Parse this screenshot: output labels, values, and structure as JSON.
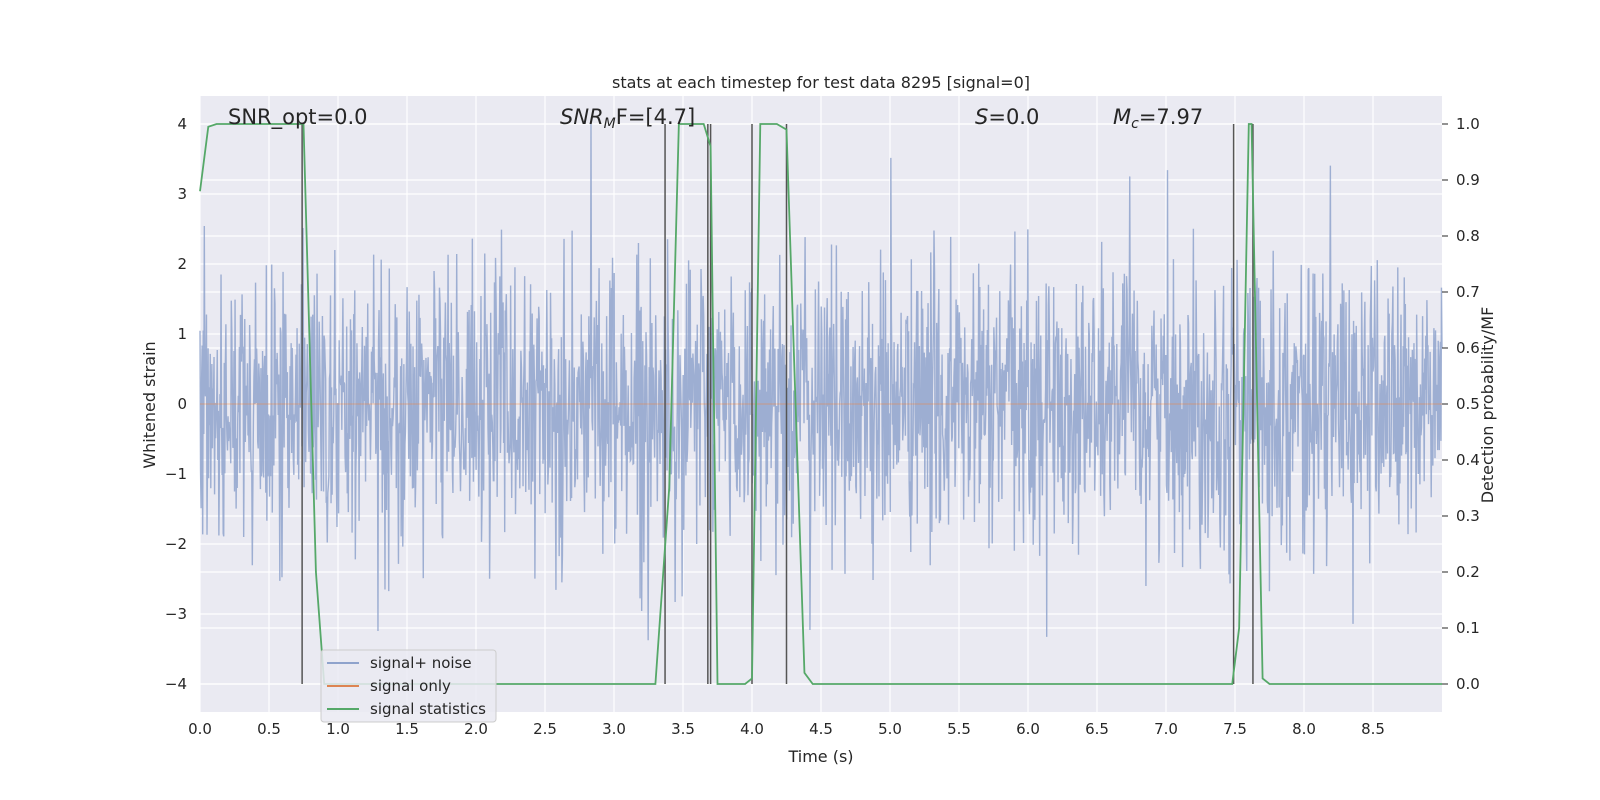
{
  "chart_data": {
    "type": "line",
    "title": "stats at each timestep for test data 8295 [signal=0]",
    "xlabel": "Time (s)",
    "ylabel_left": "Whitened strain",
    "ylabel_right": "Detection probability/MF",
    "xlim": [
      0,
      9
    ],
    "ylim_left": [
      -4.4,
      4.4
    ],
    "ylim_right": [
      -0.05,
      1.05
    ],
    "x_ticks": [
      0.0,
      0.5,
      1.0,
      1.5,
      2.0,
      2.5,
      3.0,
      3.5,
      4.0,
      4.5,
      5.0,
      5.5,
      6.0,
      6.5,
      7.0,
      7.5,
      8.0,
      8.5
    ],
    "x_tick_labels": [
      "0.0",
      "0.5",
      "1.0",
      "1.5",
      "2.0",
      "2.5",
      "3.0",
      "3.5",
      "4.0",
      "4.5",
      "5.0",
      "5.5",
      "6.0",
      "6.5",
      "7.0",
      "7.5",
      "8.0",
      "8.5"
    ],
    "y_left_ticks": [
      -4,
      -3,
      -2,
      -1,
      0,
      1,
      2,
      3,
      4
    ],
    "y_left_tick_labels": [
      "−4",
      "−3",
      "−2",
      "−1",
      "0",
      "1",
      "2",
      "3",
      "4"
    ],
    "y_right_ticks": [
      0.0,
      0.1,
      0.2,
      0.3,
      0.4,
      0.5,
      0.6,
      0.7,
      0.8,
      0.9,
      1.0
    ],
    "y_right_tick_labels": [
      "0.0",
      "0.1",
      "0.2",
      "0.3",
      "0.4",
      "0.5",
      "0.6",
      "0.7",
      "0.8",
      "0.9",
      "1.0"
    ],
    "grid": true,
    "legend": {
      "placement": "lower-left",
      "entries": [
        {
          "label": "signal+ noise",
          "color": "#8fa3cc"
        },
        {
          "label": "signal only",
          "color": "#dd8452"
        },
        {
          "label": "signal statistics",
          "color": "#55a868"
        }
      ]
    },
    "annotations": {
      "snr_opt": "SNR_opt=0.0",
      "snr_mf_base": "SNR",
      "snr_mf_sub": "M",
      "snr_mf_rest": "F=[4.7]",
      "s_base": "S",
      "s_rest": "=0.0",
      "mc_base": "M",
      "mc_sub": "c",
      "mc_rest": "=7.97"
    },
    "series": [
      {
        "name": "signal+ noise",
        "axis": "left",
        "color": "#8fa3cc",
        "kind": "noise",
        "n_samples": 2304,
        "std": 1.0,
        "x_range": [
          0,
          9
        ]
      },
      {
        "name": "signal only",
        "axis": "left",
        "color": "#dd8452",
        "kind": "constant",
        "y": 0
      },
      {
        "name": "signal statistics",
        "axis": "right",
        "color": "#55a868",
        "x": [
          0.0,
          0.06,
          0.12,
          0.7,
          0.75,
          0.84,
          0.9,
          3.3,
          3.4,
          3.47,
          3.65,
          3.7,
          3.75,
          3.95,
          4.0,
          4.06,
          4.18,
          4.25,
          4.38,
          4.44,
          7.48,
          7.53,
          7.6,
          7.62,
          7.7,
          7.75,
          9.0
        ],
        "y": [
          0.88,
          0.995,
          1.0,
          1.0,
          1.0,
          0.2,
          0.0,
          0.0,
          0.35,
          1.0,
          1.0,
          0.96,
          0.0,
          0.0,
          0.01,
          1.0,
          1.0,
          0.99,
          0.02,
          0.0,
          0.0,
          0.1,
          1.0,
          1.0,
          0.01,
          0.0,
          0.0
        ]
      }
    ],
    "vertical_markers": [
      0.74,
      3.37,
      3.68,
      3.7,
      4.0,
      4.25,
      7.49,
      7.63
    ]
  }
}
